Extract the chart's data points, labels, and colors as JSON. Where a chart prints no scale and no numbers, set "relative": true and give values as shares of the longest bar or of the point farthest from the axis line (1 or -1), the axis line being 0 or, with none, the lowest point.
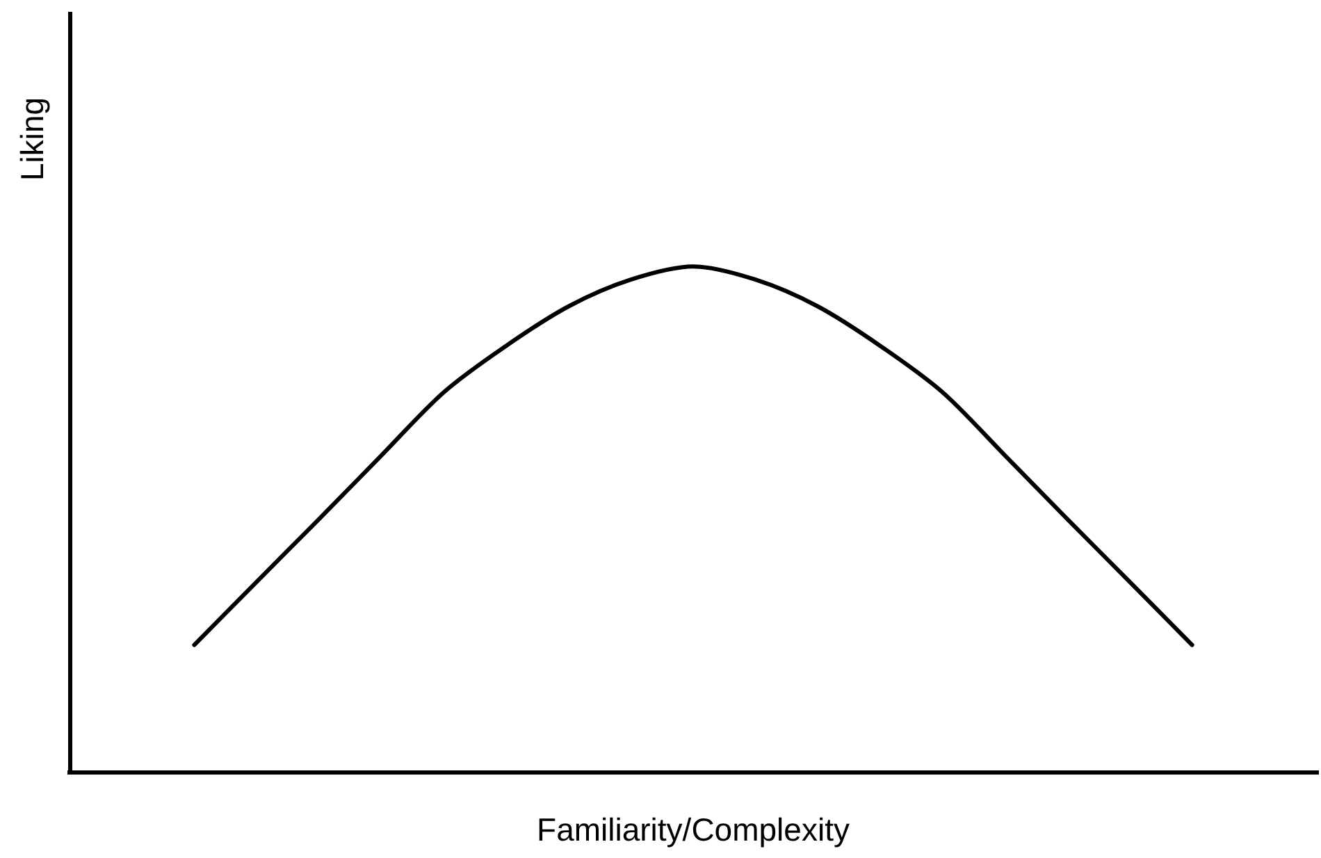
{
  "chart_data": {
    "type": "line",
    "xlabel": "Familiarity/Complexity",
    "ylabel": "Liking",
    "relative": true,
    "marker": "none",
    "line_style": "solid",
    "categories": [
      null,
      null,
      null,
      null,
      null,
      null,
      null,
      null,
      null,
      null,
      null,
      null,
      null,
      null,
      null,
      null,
      null,
      null,
      null,
      null,
      null
    ],
    "series": [
      {
        "color": "#000000",
        "values": [
          null,
          null,
          0.251,
          0.376,
          0.5,
          0.626,
          0.751,
          0.843,
          0.921,
          0.974,
          1,
          0.974,
          0.921,
          0.843,
          0.751,
          0.626,
          0.5,
          0.376,
          0.251,
          null,
          null
        ]
      }
    ]
  }
}
